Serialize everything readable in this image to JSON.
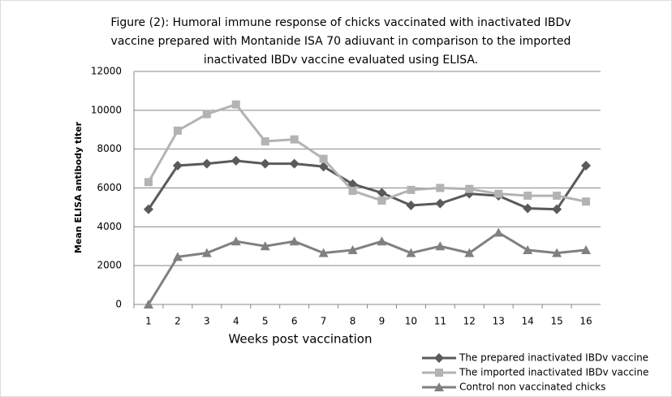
{
  "chart_data": {
    "type": "line",
    "title": [
      "Figure (2): Humoral immune  response  of chicks vaccinated with inactivated IBDv",
      "vaccine prepared with Montanide ISA 70 adiuvant in comparison to the imported",
      "inactivated IBDv vaccine  evaluated using ELISA."
    ],
    "xlabel": "Weeks post vaccination",
    "ylabel": "Mean ELISA antibody titer",
    "categories": [
      "1",
      "2",
      "3",
      "4",
      "5",
      "6",
      "7",
      "8",
      "9",
      "10",
      "11",
      "12",
      "13",
      "14",
      "15",
      "16"
    ],
    "series": [
      {
        "name": "The prepared inactivated IBDv vaccine",
        "color": "#5a5a5a",
        "marker": "diamond",
        "values": [
          4900,
          7150,
          7250,
          7400,
          7250,
          7250,
          7100,
          6200,
          5750,
          5100,
          5200,
          5700,
          5600,
          4950,
          4900,
          7150
        ]
      },
      {
        "name": "The imported inactivated IBDv vaccine",
        "color": "#b3b3b3",
        "marker": "square",
        "values": [
          6300,
          8950,
          9800,
          10300,
          8400,
          8500,
          7500,
          5850,
          5350,
          5900,
          6000,
          5950,
          5700,
          5600,
          5600,
          5300
        ]
      },
      {
        "name": "Control non vaccinated chicks",
        "color": "#808080",
        "marker": "triangle",
        "values": [
          0,
          2450,
          2650,
          3250,
          3000,
          3250,
          2650,
          2800,
          3250,
          2650,
          3000,
          2650,
          3700,
          2800,
          2650,
          2800
        ]
      }
    ],
    "ylim": [
      0,
      12000
    ],
    "yticks": [
      0,
      2000,
      4000,
      6000,
      8000,
      10000,
      12000
    ],
    "grid": true,
    "legend": "bottom-right"
  }
}
